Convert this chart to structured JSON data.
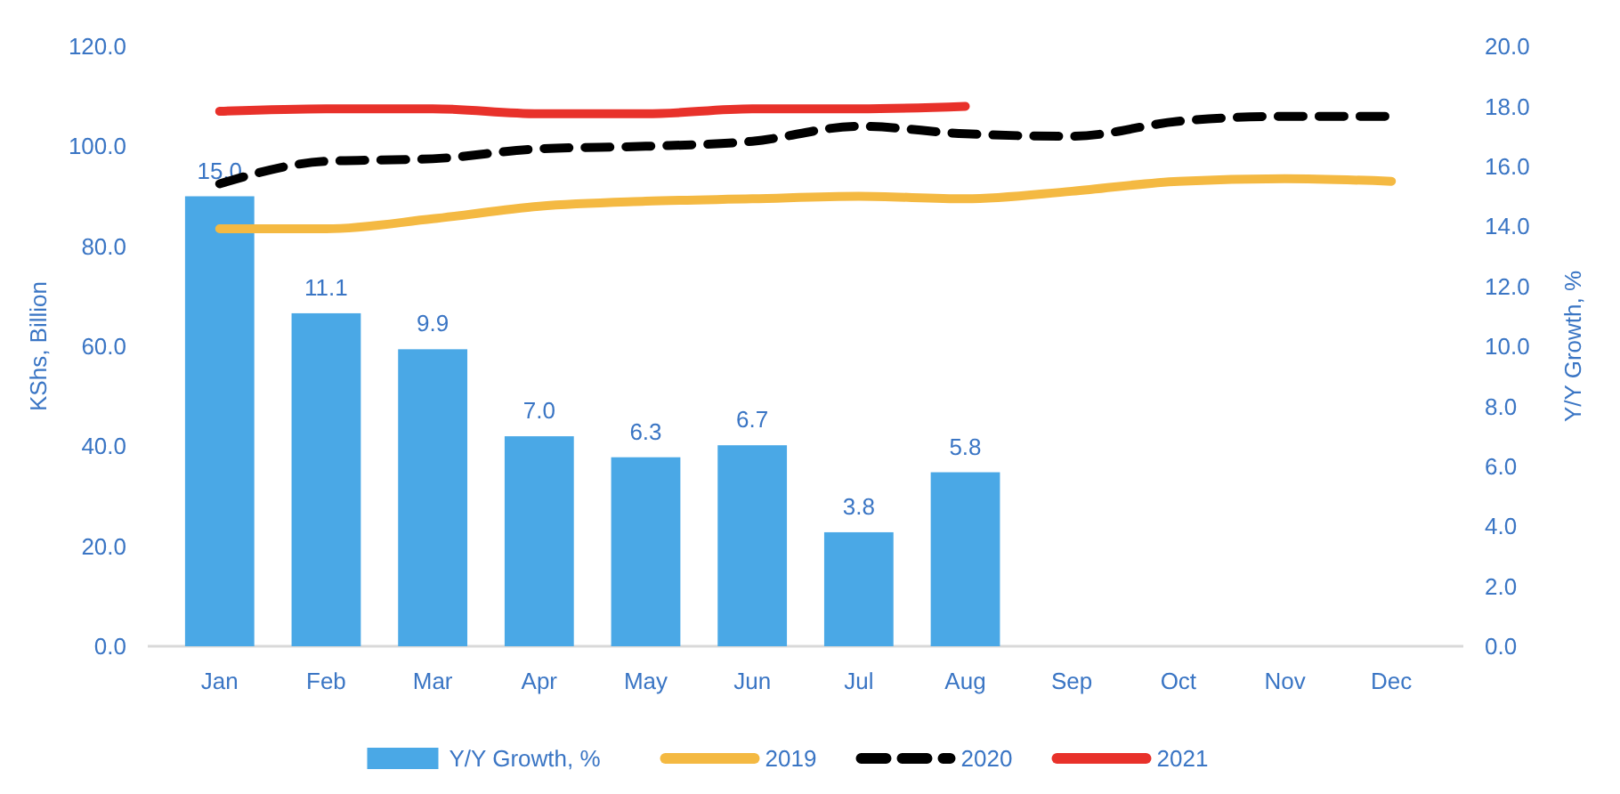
{
  "chart_data": {
    "type": "line",
    "categories": [
      "Jan",
      "Feb",
      "Mar",
      "Apr",
      "May",
      "Jun",
      "Jul",
      "Aug",
      "Sep",
      "Oct",
      "Nov",
      "Dec"
    ],
    "ylabel": "KShs, Billion",
    "y2label": "Y/Y Growth, %",
    "ylim": [
      0,
      120
    ],
    "yticks": [
      {
        "value": 0,
        "label": "0.0"
      },
      {
        "value": 20,
        "label": "20.0"
      },
      {
        "value": 40,
        "label": "40.0"
      },
      {
        "value": 60,
        "label": "60.0"
      },
      {
        "value": 80,
        "label": "80.0"
      },
      {
        "value": 100,
        "label": "100.0"
      },
      {
        "value": 120,
        "label": "120.0"
      }
    ],
    "y2lim": [
      0,
      20
    ],
    "y2ticks": [
      {
        "value": 0,
        "label": "0.0"
      },
      {
        "value": 2,
        "label": "2.0"
      },
      {
        "value": 4,
        "label": "4.0"
      },
      {
        "value": 6,
        "label": "6.0"
      },
      {
        "value": 8,
        "label": "8.0"
      },
      {
        "value": 10,
        "label": "10.0"
      },
      {
        "value": 12,
        "label": "12.0"
      },
      {
        "value": 14,
        "label": "14.0"
      },
      {
        "value": 16,
        "label": "16.0"
      },
      {
        "value": 18,
        "label": "18.0"
      },
      {
        "value": 20,
        "label": "20.0"
      }
    ],
    "series": [
      {
        "name": "Y/Y Growth, %",
        "type": "bar",
        "axis": "y2",
        "color": "#4aa8e6",
        "values": [
          15.0,
          11.1,
          9.9,
          7.0,
          6.3,
          6.7,
          3.8,
          5.8,
          null,
          null,
          null,
          null
        ],
        "value_labels": [
          "15.0",
          "11.1",
          "9.9",
          "7.0",
          "6.3",
          "6.7",
          "3.8",
          "5.8",
          null,
          null,
          null,
          null
        ]
      },
      {
        "name": "2019",
        "color": "#f4b942",
        "line_style": "solid",
        "values": [
          83.5,
          83.5,
          85.5,
          88,
          89,
          89.5,
          90,
          89.5,
          91,
          93,
          93.5,
          93
        ]
      },
      {
        "name": "2020",
        "color": "#000000",
        "line_style": "dashed",
        "values": [
          92.5,
          97,
          97.5,
          99.5,
          100,
          101,
          104,
          102.5,
          102,
          105,
          106,
          106
        ]
      },
      {
        "name": "2021",
        "color": "#e8312a",
        "line_style": "solid",
        "values": [
          107,
          107.5,
          107.5,
          106.5,
          106.5,
          107.5,
          107.5,
          108,
          null,
          null,
          null,
          null
        ]
      }
    ],
    "grid": false,
    "legend": "bottom",
    "marker": "none"
  }
}
